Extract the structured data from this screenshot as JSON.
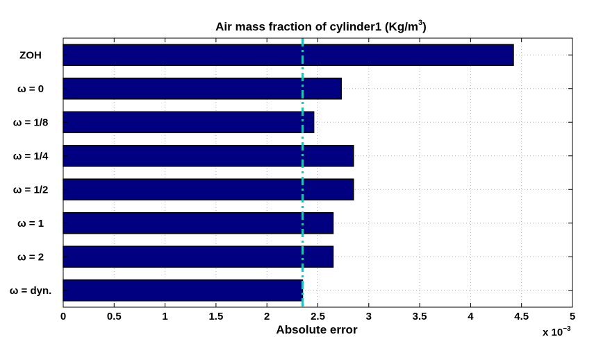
{
  "chart_data": {
    "type": "bar",
    "orientation": "horizontal",
    "title": "Air mass fraction of cylinder1 (Kg/m",
    "title_superscript": "3",
    "title_suffix": ")",
    "xlabel": "Absolute error",
    "ylabel": "",
    "x_multiplier": "x 10",
    "x_multiplier_exponent": "−3",
    "categories": [
      "ZOH",
      "ω = 0",
      "ω = 1/8",
      "ω = 1/4",
      "ω = 1/2",
      "ω = 1",
      "ω = 2",
      "ω = dyn."
    ],
    "values": [
      4.42,
      2.73,
      2.46,
      2.85,
      2.85,
      2.65,
      2.65,
      2.35
    ],
    "value_scale": "x 10^-3",
    "xlim": [
      0,
      5
    ],
    "xticks": [
      "0",
      "0.5",
      "1",
      "1.5",
      "2",
      "2.5",
      "3",
      "3.5",
      "4",
      "4.5",
      "5"
    ],
    "reference_line": {
      "x": 2.35,
      "style": "dash-dot"
    },
    "grid": true,
    "legend": "none",
    "colors": {
      "bar_fill": "#000080",
      "bar_edge": "#000000",
      "reference_line": "#20c0c0",
      "grid": "#b0b0b0"
    }
  }
}
